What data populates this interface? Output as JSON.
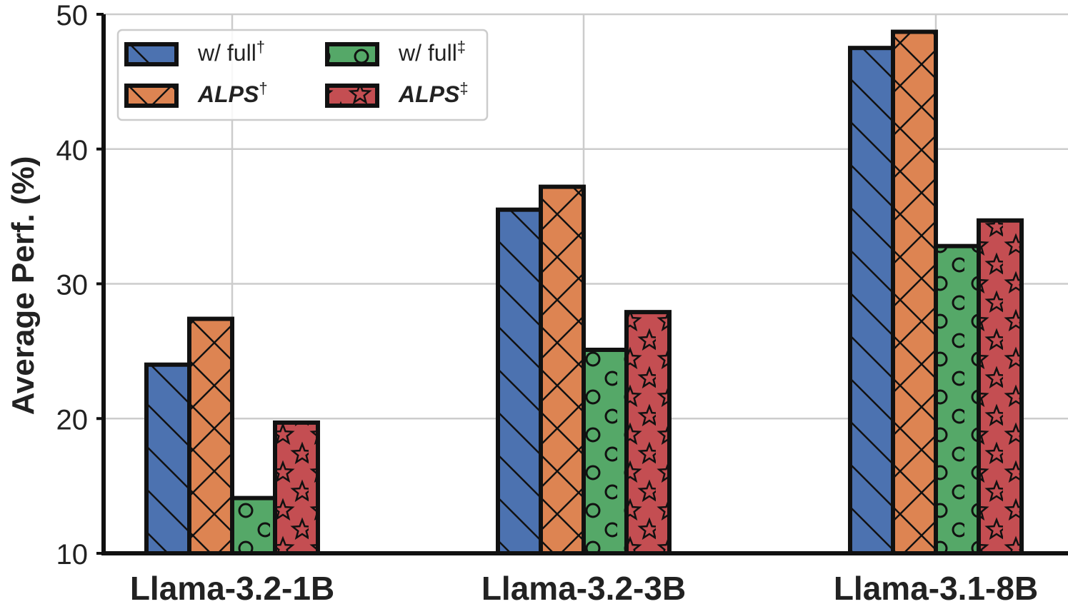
{
  "chart_data": {
    "type": "bar",
    "title": "",
    "xlabel": "",
    "ylabel": "Average Perf. (%)",
    "ylim": [
      10,
      50
    ],
    "yticks": [
      10,
      20,
      30,
      40,
      50
    ],
    "grid": true,
    "legend_position": "top-left",
    "categories": [
      "Llama-3.2-1B",
      "Llama-3.2-3B",
      "Llama-3.1-8B"
    ],
    "series": [
      {
        "name": "w/ full",
        "name_suffix": "†",
        "italic": false,
        "color": "#4c72b0",
        "hatch": "diagonal",
        "values": [
          24.0,
          35.5,
          47.5
        ]
      },
      {
        "name": "ALPS",
        "name_suffix": "†",
        "italic": true,
        "color": "#dd8452",
        "hatch": "cross",
        "values": [
          27.4,
          37.2,
          48.7
        ]
      },
      {
        "name": "w/ full",
        "name_suffix": "‡",
        "italic": false,
        "color": "#55a868",
        "hatch": "circles",
        "values": [
          14.1,
          25.1,
          32.8
        ]
      },
      {
        "name": "ALPS",
        "name_suffix": "‡",
        "italic": true,
        "color": "#c44e52",
        "hatch": "stars",
        "values": [
          19.7,
          27.9,
          34.7
        ]
      }
    ]
  }
}
